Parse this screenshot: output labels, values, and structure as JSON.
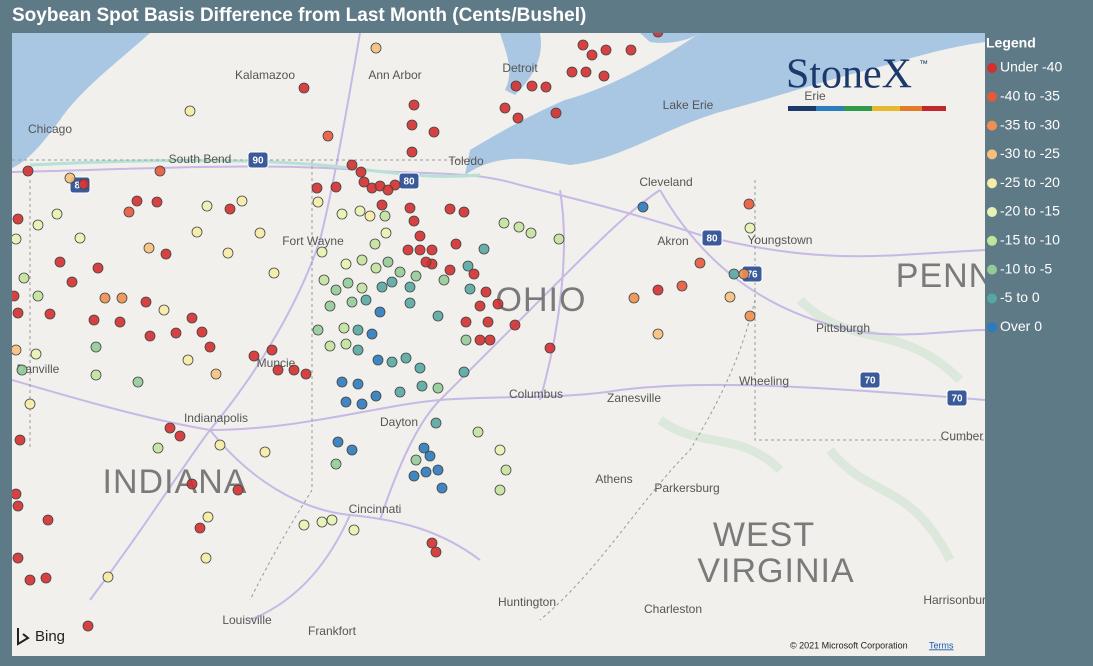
{
  "header": {
    "title": "Soybean Spot Basis Difference from Last Month (Cents/Bushel)"
  },
  "legend": {
    "title": "Legend",
    "items": [
      {
        "label": "Under -40",
        "color": "#d32f2f"
      },
      {
        "label": "-40 to -35",
        "color": "#e5593b"
      },
      {
        "label": "-35 to -30",
        "color": "#f08f4f"
      },
      {
        "label": "-30 to -25",
        "color": "#f6c07c"
      },
      {
        "label": "-25 to -20",
        "color": "#f6eca6"
      },
      {
        "label": "-20 to -15",
        "color": "#e7f3b3"
      },
      {
        "label": "-15 to -10",
        "color": "#c3e3a0"
      },
      {
        "label": "-10 to -5",
        "color": "#93cb98"
      },
      {
        "label": "-5 to 0",
        "color": "#56a7a4"
      },
      {
        "label": "Over 0",
        "color": "#2c7bbd"
      }
    ]
  },
  "map": {
    "labels": [
      "Kalamazoo",
      "Ann Arbor",
      "Detroit",
      "Chicago",
      "South Bend",
      "Toledo",
      "Lake Erie",
      "Cleveland",
      "Fort Wayne",
      "Akron",
      "Youngstown",
      "Pittsburgh",
      "Muncie",
      "Danville",
      "Wheeling",
      "Columbus",
      "Zanesville",
      "Indianapolis",
      "Dayton",
      "Cumber",
      "Athens",
      "Parkersburg",
      "Cincinnati",
      "Huntington",
      "Charleston",
      "Harrisonburg",
      "Louisville",
      "Frankfort",
      "Erie"
    ],
    "regions": [
      "OHIO",
      "PENN",
      "INDIANA",
      "WEST",
      "VIRGINIA"
    ],
    "highways": [
      "90",
      "80",
      "80",
      "80",
      "76",
      "70",
      "70"
    ]
  },
  "logo": {
    "text": "StoneX",
    "mark": "™"
  },
  "attribution": {
    "provider": "Bing",
    "copyright": "© 2021 Microsoft Corporation",
    "terms": "Terms"
  }
}
